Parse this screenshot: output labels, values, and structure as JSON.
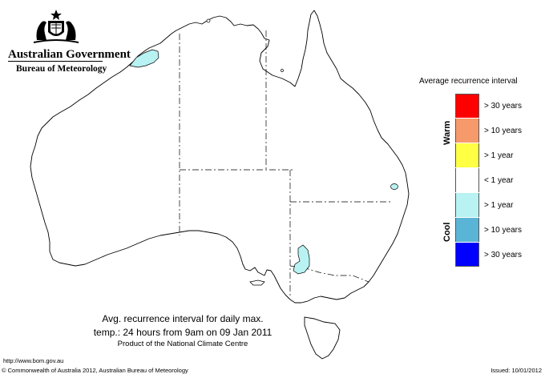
{
  "header": {
    "org_title": "Australian Government",
    "org_subtitle": "Bureau of Meteorology"
  },
  "legend": {
    "title": "Average recurrence interval",
    "warm_label": "Warm",
    "cool_label": "Cool",
    "items": [
      {
        "label": "> 30 years",
        "color": "#ff0000"
      },
      {
        "label": "> 10 years",
        "color": "#f79a6b"
      },
      {
        "label": "> 1 year",
        "color": "#ffff44"
      },
      {
        "label": "< 1 year",
        "color": "#ffffff"
      },
      {
        "label": "> 1 year",
        "color": "#b8f2f2"
      },
      {
        "label": "> 10 years",
        "color": "#5ab4d6"
      },
      {
        "label": "> 30 years",
        "color": "#0000ff"
      }
    ]
  },
  "map": {
    "region_fill": "#b8f2f2",
    "cool_regions": [
      "Kimberley coast (WA)",
      "South-east Queensland",
      "Riverina (NSW)"
    ]
  },
  "caption": {
    "line1": "Avg. recurrence interval for daily max.",
    "line2": "temp.: 24 hours from 9am on 09 Jan 2011",
    "line3": "Product of the National Climate Centre"
  },
  "footer": {
    "url": "http://www.bom.gov.au",
    "copyright": "© Commonwealth of Australia 2012, Australian Bureau of Meteorology",
    "issued": "Issued: 10/01/2012"
  }
}
